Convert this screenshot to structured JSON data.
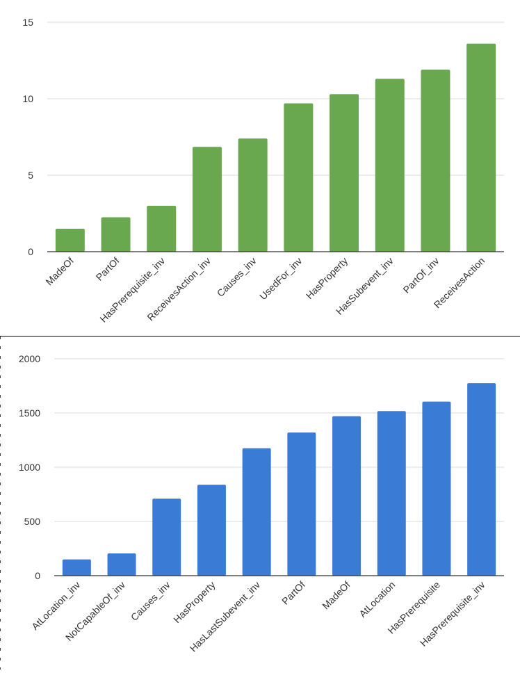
{
  "chart_data": [
    {
      "type": "bar",
      "title": "",
      "xlabel": "",
      "ylabel": "",
      "ylim": [
        0,
        15
      ],
      "yticks": [
        0,
        5,
        10,
        15
      ],
      "grid": true,
      "color": "#6aa84f",
      "categories": [
        "MadeOf",
        "PartOf",
        "HasPrerequisite_inv",
        "ReceivesAction_inv",
        "Causes_inv",
        "UsedFor_inv",
        "HasProperty",
        "HasSubevent_inv",
        "PartOf_inv",
        "ReceivesAction"
      ],
      "values": [
        1.5,
        2.25,
        3.0,
        6.85,
        7.4,
        9.7,
        10.3,
        11.3,
        11.9,
        13.6
      ]
    },
    {
      "type": "bar",
      "title": "",
      "xlabel": "",
      "ylabel": "",
      "ylim": [
        0,
        2000
      ],
      "yticks": [
        0,
        500,
        1000,
        1500,
        2000
      ],
      "grid": true,
      "color": "#3a7bd5",
      "categories": [
        "AtLocation_inv",
        "NotCapableOf_inv",
        "Causes_inv",
        "HasProperty",
        "HasLastSubevent_inv",
        "PartOf",
        "MadeOf",
        "AtLocation",
        "HasPrerequisite",
        "HasPrerequisite_inv"
      ],
      "values": [
        150,
        205,
        710,
        838,
        1175,
        1320,
        1470,
        1518,
        1605,
        1775
      ]
    }
  ]
}
